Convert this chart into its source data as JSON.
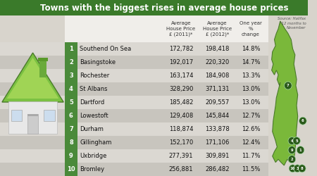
{
  "title": "Towns with the biggest rises in average house prices",
  "source": "Source: Halifax\n*12 months to\nNovember",
  "col_headers": [
    "Average\nHouse Price\n£ (2011)*",
    "Average\nHouse Price\n£ (2012)*",
    "One year\n%\nchange"
  ],
  "rows": [
    {
      "rank": 1,
      "town": "Southend On Sea",
      "price2011": "172,782",
      "price2012": "198,418",
      "change": "14.8%"
    },
    {
      "rank": 2,
      "town": "Basingstoke",
      "price2011": "192,017",
      "price2012": "220,320",
      "change": "14.7%"
    },
    {
      "rank": 3,
      "town": "Rochester",
      "price2011": "163,174",
      "price2012": "184,908",
      "change": "13.3%"
    },
    {
      "rank": 4,
      "town": "St Albans",
      "price2011": "328,290",
      "price2012": "371,131",
      "change": "13.0%"
    },
    {
      "rank": 5,
      "town": "Dartford",
      "price2011": "185,482",
      "price2012": "209,557",
      "change": "13.0%"
    },
    {
      "rank": 6,
      "town": "Lowestoft",
      "price2011": "129,408",
      "price2012": "145,844",
      "change": "12.7%"
    },
    {
      "rank": 7,
      "town": "Durham",
      "price2011": "118,874",
      "price2012": "133,878",
      "change": "12.6%"
    },
    {
      "rank": 8,
      "town": "Gillingham",
      "price2011": "152,170",
      "price2012": "171,106",
      "change": "12.4%"
    },
    {
      "rank": 9,
      "town": "Uxbridge",
      "price2011": "277,391",
      "price2012": "309,891",
      "change": "11.7%"
    },
    {
      "rank": 10,
      "town": "Bromley",
      "price2011": "256,881",
      "price2012": "286,482",
      "change": "11.5%"
    }
  ],
  "bg_color": "#d8d4cc",
  "header_bg": "#3a7a2a",
  "title_color": "#ffffff",
  "rank_bg": "#4a8a3a",
  "row_bg_odd": "#dbd8d2",
  "row_bg_even": "#c8c5be",
  "text_color": "#111111",
  "map_color_light": "#88cc44",
  "map_color_dark": "#3a7a2a"
}
